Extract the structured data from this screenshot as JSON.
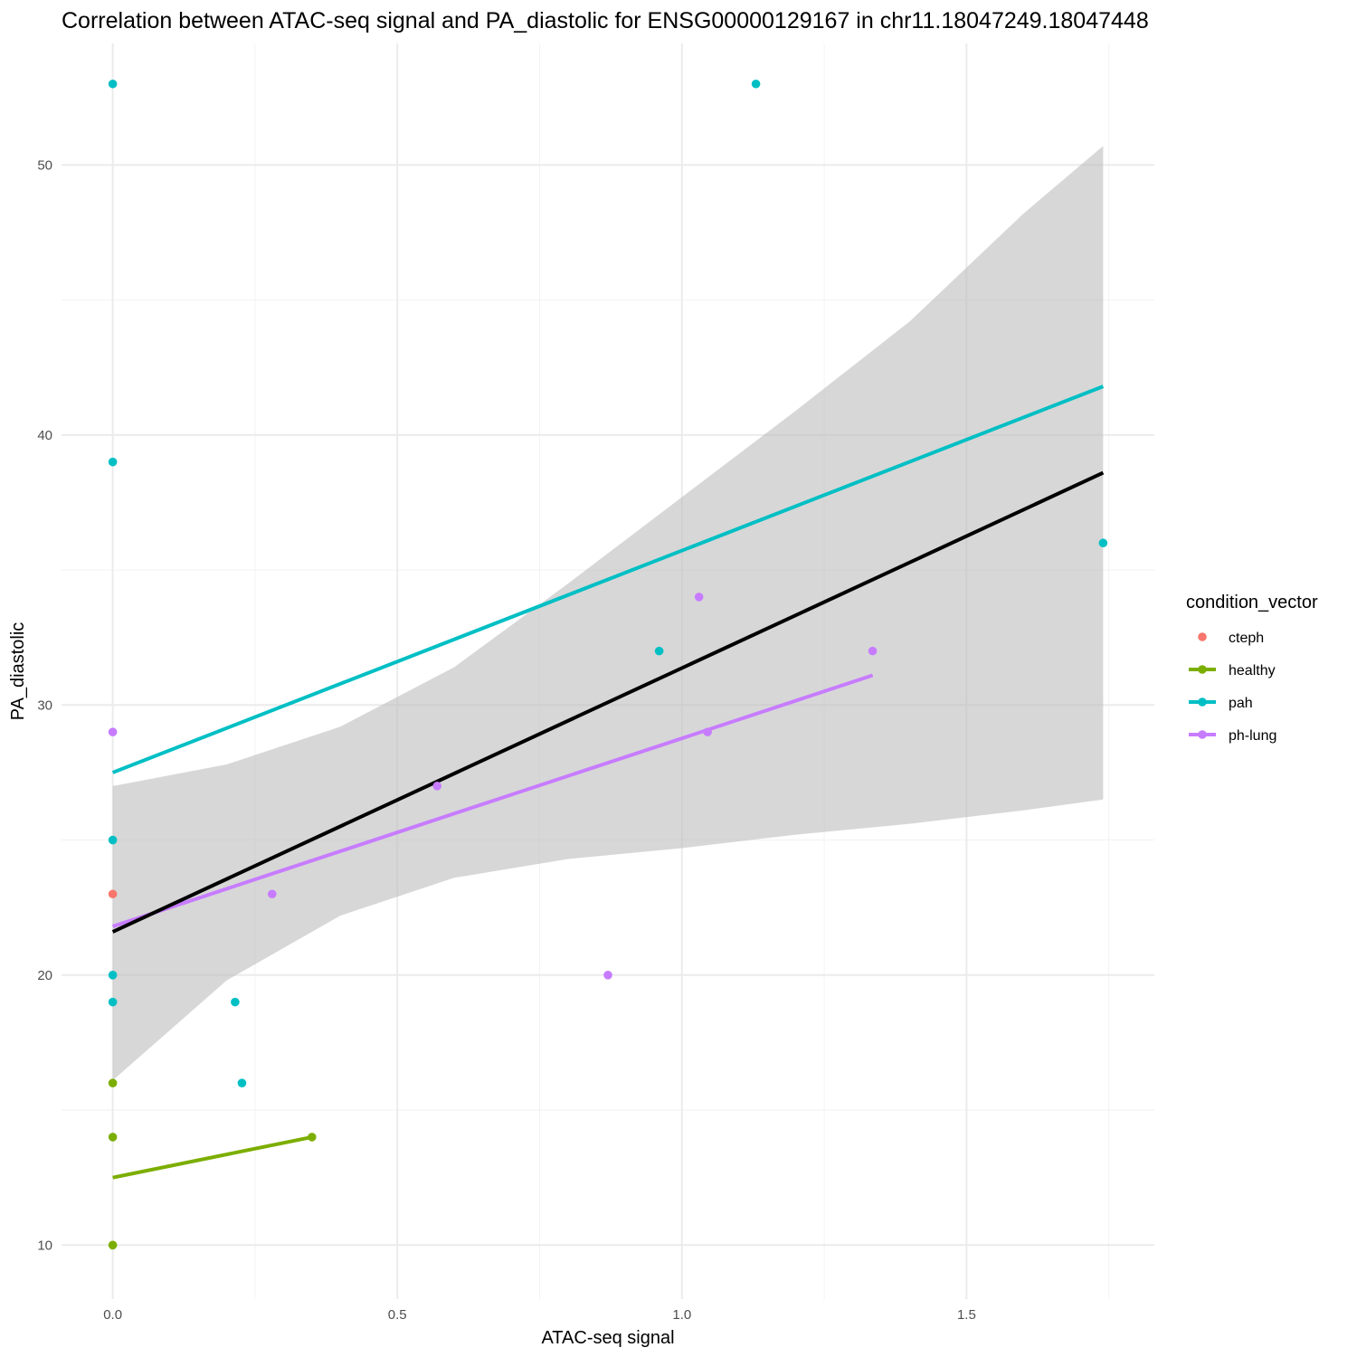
{
  "chart_data": {
    "type": "scatter",
    "title": "Correlation between ATAC-seq signal and PA_diastolic for ENSG00000129167 in chr11.18047249.18047448",
    "xlabel": "ATAC-seq signal",
    "ylabel": "PA_diastolic",
    "xlim": [
      -0.09,
      1.83
    ],
    "ylim": [
      8.0,
      54.5
    ],
    "x_ticks": [
      0.0,
      0.5,
      1.0,
      1.5
    ],
    "x_tick_labels": [
      "0.0",
      "0.5",
      "1.0",
      "1.5"
    ],
    "y_ticks": [
      10,
      20,
      30,
      40,
      50
    ],
    "y_tick_labels": [
      "10",
      "20",
      "30",
      "40",
      "50"
    ],
    "grid": true,
    "legend": {
      "title": "condition_vector",
      "placement": "right",
      "entries": [
        {
          "label": "cteph",
          "color": "#F8766D",
          "line": false
        },
        {
          "label": "healthy",
          "color": "#7CAE00",
          "line": true
        },
        {
          "label": "pah",
          "color": "#00BFC4",
          "line": true
        },
        {
          "label": "ph-lung",
          "color": "#C77CFF",
          "line": true
        }
      ]
    },
    "series": [
      {
        "name": "cteph",
        "color": "#F8766D",
        "points": [
          {
            "x": 0.0,
            "y": 23
          }
        ]
      },
      {
        "name": "healthy",
        "color": "#7CAE00",
        "points": [
          {
            "x": 0.0,
            "y": 16
          },
          {
            "x": 0.0,
            "y": 14
          },
          {
            "x": 0.0,
            "y": 10
          },
          {
            "x": 0.35,
            "y": 14
          }
        ]
      },
      {
        "name": "pah",
        "color": "#00BFC4",
        "points": [
          {
            "x": 0.0,
            "y": 53
          },
          {
            "x": 0.0,
            "y": 39
          },
          {
            "x": 0.0,
            "y": 25
          },
          {
            "x": 0.0,
            "y": 20
          },
          {
            "x": 0.0,
            "y": 19
          },
          {
            "x": 0.215,
            "y": 19
          },
          {
            "x": 0.227,
            "y": 16
          },
          {
            "x": 0.96,
            "y": 32
          },
          {
            "x": 1.13,
            "y": 53
          },
          {
            "x": 1.74,
            "y": 36
          }
        ]
      },
      {
        "name": "ph-lung",
        "color": "#C77CFF",
        "points": [
          {
            "x": 0.0,
            "y": 29
          },
          {
            "x": 0.28,
            "y": 23
          },
          {
            "x": 0.57,
            "y": 27
          },
          {
            "x": 0.87,
            "y": 20
          },
          {
            "x": 1.03,
            "y": 34
          },
          {
            "x": 1.045,
            "y": 29
          },
          {
            "x": 1.335,
            "y": 32
          }
        ]
      }
    ],
    "fit_lines": [
      {
        "group": "healthy",
        "color": "#7CAE00",
        "x": [
          0.0,
          0.35
        ],
        "y": [
          12.5,
          14.0
        ]
      },
      {
        "group": "pah",
        "color": "#00BFC4",
        "x": [
          0.0,
          1.74
        ],
        "y": [
          27.5,
          41.8
        ]
      },
      {
        "group": "ph-lung",
        "color": "#C77CFF",
        "x": [
          0.0,
          1.335
        ],
        "y": [
          21.8,
          31.1
        ]
      },
      {
        "group": "overall",
        "color": "#000000",
        "x": [
          0.0,
          1.74
        ],
        "y": [
          21.6,
          38.6
        ]
      }
    ],
    "confidence_band": {
      "color": "#BEBEBE",
      "x": [
        0.0,
        0.2,
        0.4,
        0.6,
        0.8,
        1.0,
        1.2,
        1.4,
        1.6,
        1.74
      ],
      "lower": [
        16.1,
        19.8,
        22.2,
        23.6,
        24.3,
        24.7,
        25.2,
        25.6,
        26.1,
        26.5
      ],
      "upper": [
        27.0,
        27.8,
        29.2,
        31.4,
        34.5,
        37.7,
        40.9,
        44.2,
        48.2,
        50.7
      ]
    }
  }
}
